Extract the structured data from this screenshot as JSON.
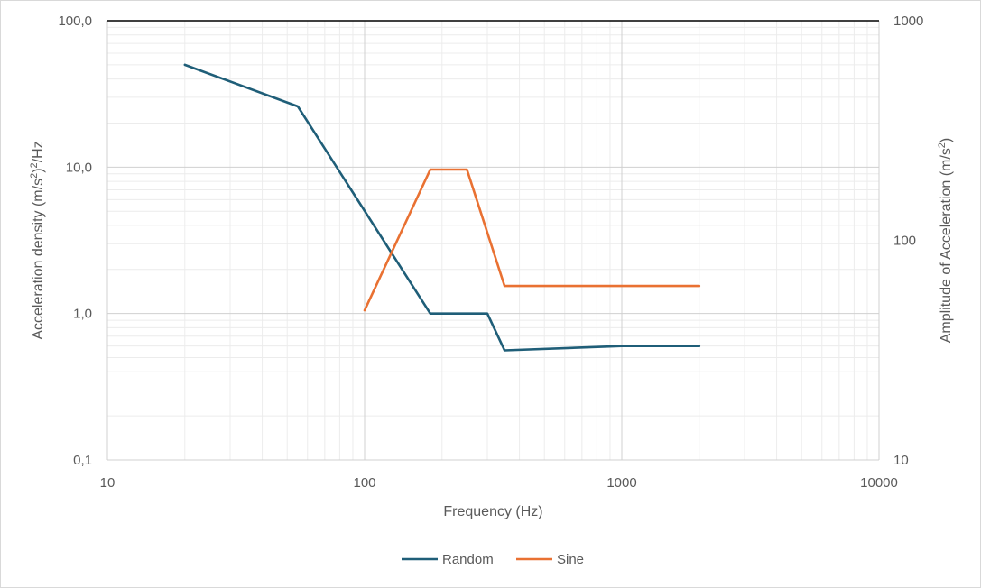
{
  "chart_data": {
    "type": "line",
    "title": "",
    "xlabel": "Frequency (Hz)",
    "ylabel_left": {
      "base": "Acceleration density (m/s",
      "sup1": "2",
      "mid": ")",
      "sup2": "2",
      "end": "/Hz"
    },
    "ylabel_right": {
      "base": "Amplitude of Acceleration (m/s",
      "sup": "2",
      "end": ")"
    },
    "x_scale": "log",
    "xlim": [
      10,
      10000
    ],
    "x_ticks": [
      "10",
      "100",
      "1000",
      "10000"
    ],
    "y_left_scale": "log",
    "y_left_lim": [
      0.1,
      100
    ],
    "y_left_ticks": [
      "0,1",
      "1,0",
      "10,0",
      "100,0"
    ],
    "y_right_scale": "log",
    "y_right_lim": [
      10,
      1000
    ],
    "y_right_ticks": [
      "10",
      "100",
      "1000"
    ],
    "grid": true,
    "legend_position": "bottom",
    "series": [
      {
        "name": "Random",
        "axis": "left",
        "color": "#1f5e78",
        "points": [
          [
            20,
            50
          ],
          [
            55,
            26
          ],
          [
            180,
            1.0
          ],
          [
            300,
            1.0
          ],
          [
            350,
            0.56
          ],
          [
            1000,
            0.6
          ],
          [
            2000,
            0.6
          ]
        ]
      },
      {
        "name": "Sine",
        "axis": "right",
        "color": "#e97132",
        "points": [
          [
            100,
            48
          ],
          [
            180,
            210
          ],
          [
            250,
            210
          ],
          [
            350,
            62
          ],
          [
            2000,
            62
          ]
        ]
      }
    ]
  }
}
